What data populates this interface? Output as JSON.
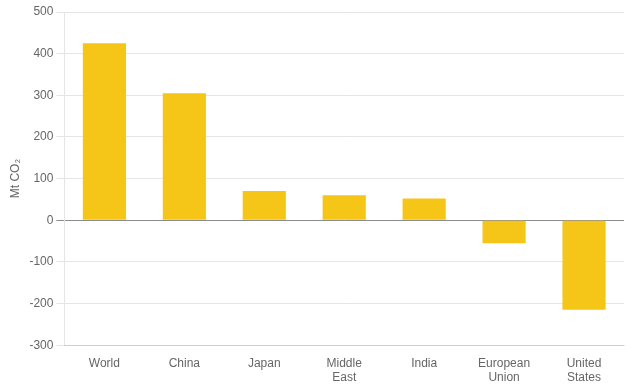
{
  "chart_data": {
    "type": "bar",
    "categories": [
      "World",
      "China",
      "Japan",
      "Middle\nEast",
      "India",
      "European\nUnion",
      "United\nStates"
    ],
    "values": [
      425,
      305,
      70,
      60,
      52,
      -55,
      -215
    ],
    "color": "#F5C518",
    "ylabel": "Mt CO₂",
    "ylim": [
      -300,
      500
    ],
    "yticks": [
      -300,
      -200,
      -100,
      0,
      100,
      200,
      300,
      400,
      500
    ],
    "grid": true
  }
}
